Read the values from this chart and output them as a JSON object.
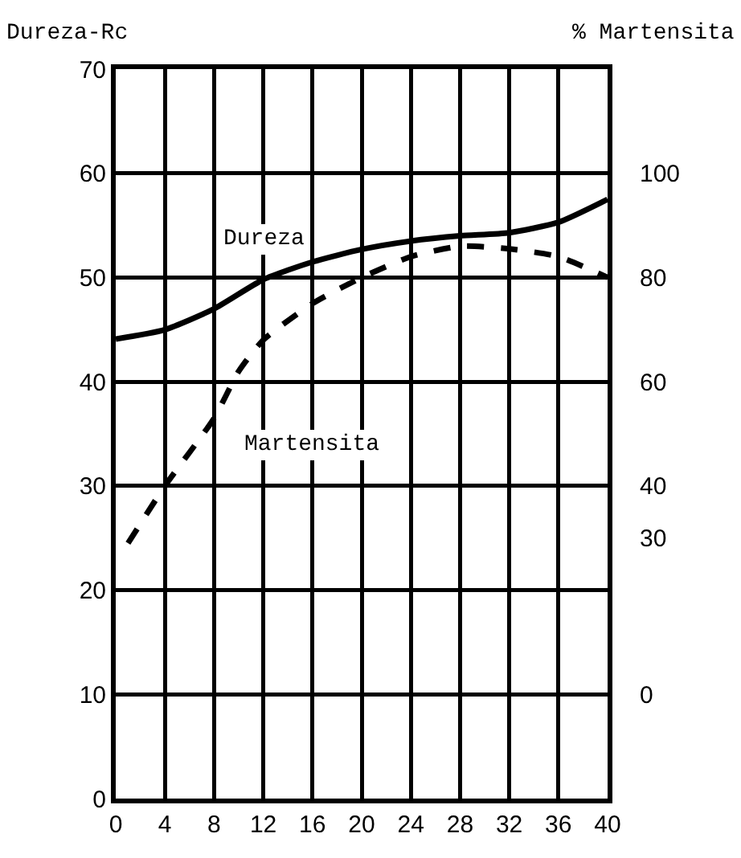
{
  "chart_data": {
    "type": "line",
    "ylabel": "Dureza-Rc",
    "y2label": "% Martensita",
    "x": [
      0,
      4,
      8,
      12,
      16,
      20,
      24,
      28,
      32,
      36,
      40
    ],
    "series": [
      {
        "name": "Dureza",
        "color": "#000000",
        "line_style": "solid",
        "values": [
          44.1,
          45,
          47,
          49.8,
          51.5,
          52.7,
          53.5,
          54,
          54.3,
          55.3,
          57.5
        ]
      },
      {
        "name": "Martensita",
        "color": "#000000",
        "line_style": "dashed",
        "axis": "y2",
        "x": [
          1,
          4,
          8,
          10,
          12,
          16,
          20,
          24,
          28,
          32,
          36,
          40
        ],
        "values": [
          29,
          40,
          53,
          62,
          68,
          75,
          80,
          84,
          86,
          85.5,
          84,
          80
        ]
      }
    ],
    "xlim": [
      0,
      40
    ],
    "xticks": [
      0,
      4,
      8,
      12,
      16,
      20,
      24,
      28,
      32,
      36,
      40
    ],
    "ylim": [
      0,
      70
    ],
    "yticks": [
      0,
      10,
      20,
      30,
      40,
      50,
      60,
      70
    ],
    "y2lim": [
      -20,
      120
    ],
    "y2ticks": [
      0,
      30,
      40,
      60,
      80,
      100
    ],
    "grid": true,
    "legend": false,
    "marker": "none"
  }
}
